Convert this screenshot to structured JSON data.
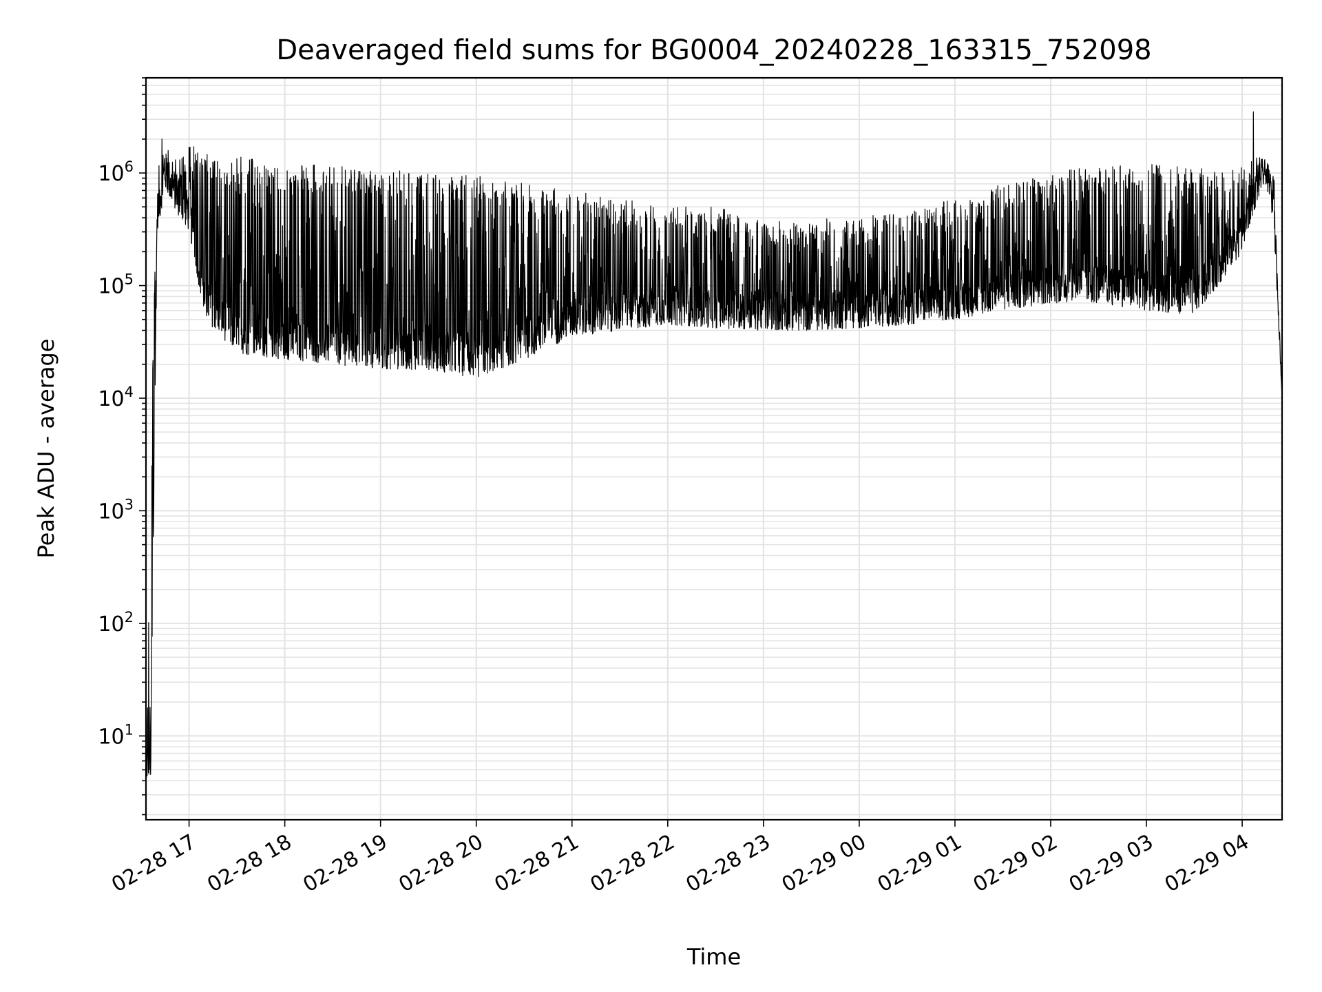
{
  "chart_data": {
    "type": "line",
    "title": "Deaveraged field sums for BG0004_20240228_163315_752098",
    "xlabel": "Time",
    "ylabel": "Peak ADU - average",
    "yscale": "log",
    "ylim": [
      1.8,
      7000000
    ],
    "xlim": [
      "2024-02-28 16:33",
      "2024-02-29 04:25"
    ],
    "grid": true,
    "line_color": "#000000",
    "x_ticks": [
      "02-28 17",
      "02-28 18",
      "02-28 19",
      "02-28 20",
      "02-28 21",
      "02-28 22",
      "02-28 23",
      "02-29 00",
      "02-29 01",
      "02-29 02",
      "02-29 03",
      "02-29 04"
    ],
    "y_ticks": [
      {
        "base": "10",
        "exp": "1",
        "value": 10
      },
      {
        "base": "10",
        "exp": "2",
        "value": 100
      },
      {
        "base": "10",
        "exp": "3",
        "value": 1000
      },
      {
        "base": "10",
        "exp": "4",
        "value": 10000
      },
      {
        "base": "10",
        "exp": "5",
        "value": 100000
      },
      {
        "base": "10",
        "exp": "6",
        "value": 1000000
      }
    ],
    "series": [
      {
        "trend": [
          {
            "t": "2024-02-28 16:33",
            "low": 4,
            "high": 4
          },
          {
            "t": "2024-02-28 16:36",
            "low": 4,
            "high": 5000
          },
          {
            "t": "2024-02-28 16:40",
            "low": 300000,
            "high": 1000000
          },
          {
            "t": "2024-02-28 16:45",
            "low": 700000,
            "high": 2000000
          },
          {
            "t": "2024-02-28 16:50",
            "low": 500000,
            "high": 1300000
          },
          {
            "t": "2024-02-28 17:00",
            "low": 300000,
            "high": 1800000
          },
          {
            "t": "2024-02-28 17:10",
            "low": 50000,
            "high": 1600000
          },
          {
            "t": "2024-02-28 17:30",
            "low": 25000,
            "high": 1400000
          },
          {
            "t": "2024-02-28 18:00",
            "low": 22000,
            "high": 1200000
          },
          {
            "t": "2024-02-28 18:30",
            "low": 20000,
            "high": 1200000
          },
          {
            "t": "2024-02-28 19:00",
            "low": 18000,
            "high": 1100000
          },
          {
            "t": "2024-02-28 19:30",
            "low": 18000,
            "high": 1000000
          },
          {
            "t": "2024-02-28 20:00",
            "low": 15000,
            "high": 1000000
          },
          {
            "t": "2024-02-28 20:30",
            "low": 22000,
            "high": 800000
          },
          {
            "t": "2024-02-28 21:00",
            "low": 35000,
            "high": 700000
          },
          {
            "t": "2024-02-28 21:30",
            "low": 40000,
            "high": 600000
          },
          {
            "t": "2024-02-28 22:00",
            "low": 45000,
            "high": 500000
          },
          {
            "t": "2024-02-28 22:30",
            "low": 42000,
            "high": 500000
          },
          {
            "t": "2024-02-28 23:00",
            "low": 40000,
            "high": 400000
          },
          {
            "t": "2024-02-28 23:30",
            "low": 40000,
            "high": 400000
          },
          {
            "t": "2024-02-29 00:00",
            "low": 42000,
            "high": 400000
          },
          {
            "t": "2024-02-29 00:30",
            "low": 45000,
            "high": 500000
          },
          {
            "t": "2024-02-29 01:00",
            "low": 50000,
            "high": 600000
          },
          {
            "t": "2024-02-29 01:30",
            "low": 60000,
            "high": 800000
          },
          {
            "t": "2024-02-29 02:00",
            "low": 70000,
            "high": 1000000
          },
          {
            "t": "2024-02-29 02:30",
            "low": 70000,
            "high": 1200000
          },
          {
            "t": "2024-02-29 03:00",
            "low": 60000,
            "high": 1200000
          },
          {
            "t": "2024-02-29 03:30",
            "low": 55000,
            "high": 1200000
          },
          {
            "t": "2024-02-29 03:45",
            "low": 100000,
            "high": 1000000
          },
          {
            "t": "2024-02-29 04:00",
            "low": 200000,
            "high": 1200000
          },
          {
            "t": "2024-02-29 04:10",
            "low": 600000,
            "high": 1400000
          },
          {
            "t": "2024-02-29 04:15",
            "low": 800000,
            "high": 1300000
          },
          {
            "t": "2024-02-29 04:20",
            "low": 300000,
            "high": 900000
          },
          {
            "t": "2024-02-29 04:25",
            "low": 10000,
            "high": 10000
          }
        ],
        "peaks": [
          {
            "t": "2024-02-28 16:43",
            "value": 2000000
          },
          {
            "t": "2024-02-29 04:07",
            "value": 3500000
          }
        ]
      }
    ]
  }
}
